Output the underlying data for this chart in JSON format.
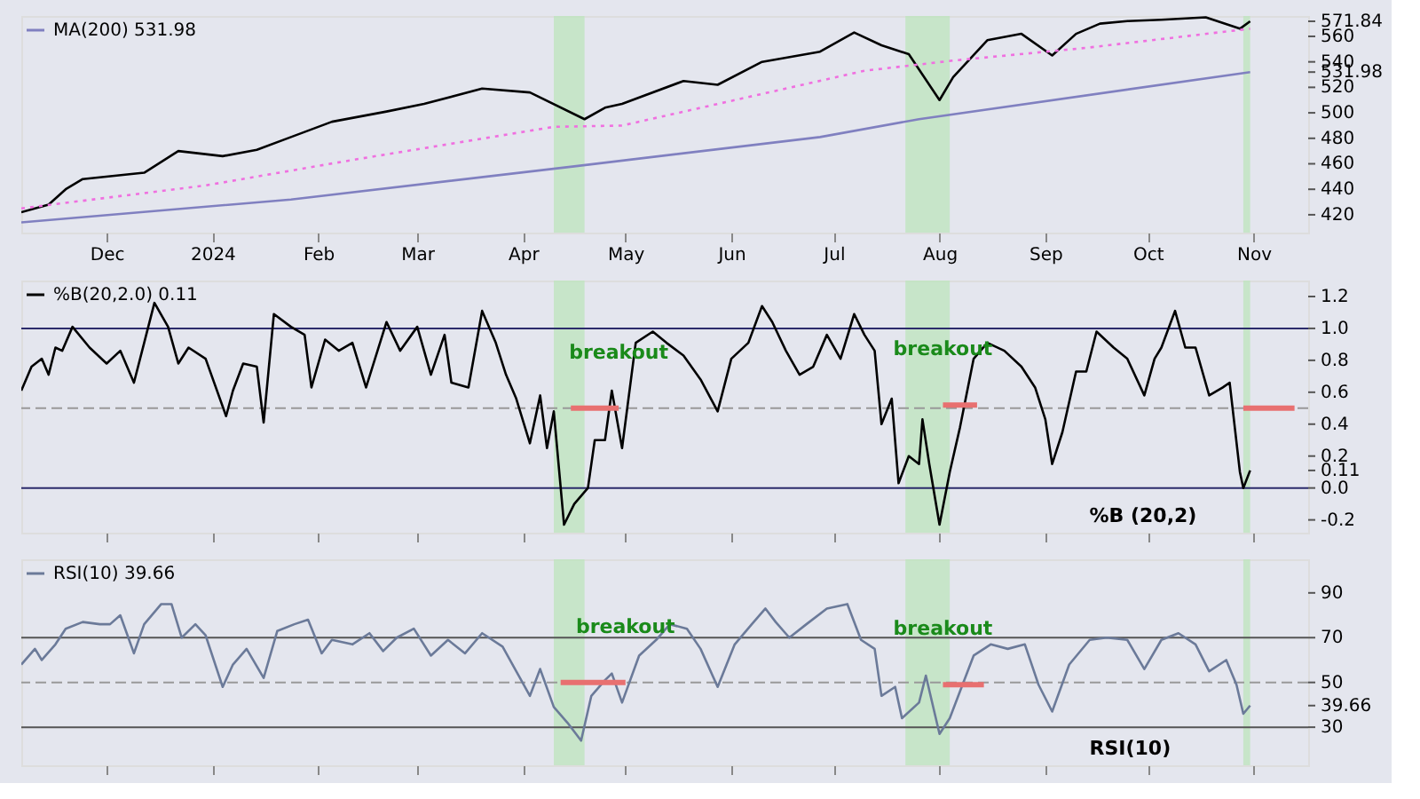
{
  "chart_data": [
    {
      "type": "line",
      "xlim": [
        "2023-11-06",
        "2024-11-17"
      ],
      "xticks": [
        {
          "value": "2023-12-01",
          "label": "Dec"
        },
        {
          "value": "2024-01-01",
          "label": "2024"
        },
        {
          "value": "2024-02-01",
          "label": "Feb"
        },
        {
          "value": "2024-03-01",
          "label": "Mar"
        },
        {
          "value": "2024-04-01",
          "label": "Apr"
        },
        {
          "value": "2024-05-01",
          "label": "May"
        },
        {
          "value": "2024-06-01",
          "label": "Jun"
        },
        {
          "value": "2024-07-01",
          "label": "Jul"
        },
        {
          "value": "2024-08-01",
          "label": "Aug"
        },
        {
          "value": "2024-09-01",
          "label": "Sep"
        },
        {
          "value": "2024-10-01",
          "label": "Oct"
        },
        {
          "value": "2024-11-01",
          "label": "Nov"
        }
      ],
      "ylim": [
        406,
        576
      ],
      "yticks": [
        420,
        440,
        460,
        480,
        500,
        520,
        531.98,
        540,
        560,
        571.84
      ],
      "grid": false,
      "legend": "top left",
      "series": [
        {
          "color": "#000000",
          "line_style": "solid",
          "x": [
            "2023-11-06",
            "2023-11-14",
            "2023-11-19",
            "2023-11-24",
            "2023-12-12",
            "2023-12-22",
            "2024-01-04",
            "2024-01-14",
            "2024-01-24",
            "2024-02-05",
            "2024-02-21",
            "2024-03-03",
            "2024-03-20",
            "2024-04-03",
            "2024-04-19",
            "2024-04-25",
            "2024-04-30",
            "2024-05-18",
            "2024-05-28",
            "2024-06-10",
            "2024-06-27",
            "2024-07-07",
            "2024-07-15",
            "2024-07-23",
            "2024-08-01",
            "2024-08-05",
            "2024-08-15",
            "2024-08-25",
            "2024-09-03",
            "2024-09-10",
            "2024-09-17",
            "2024-09-25",
            "2024-10-05",
            "2024-10-18",
            "2024-10-28",
            "2024-10-31"
          ],
          "values": [
            422,
            428,
            440,
            448,
            453,
            470,
            466,
            471,
            481,
            493,
            501,
            507,
            519,
            516,
            495,
            504,
            507,
            525,
            522,
            540,
            548,
            563,
            553,
            546,
            510,
            528,
            557,
            562,
            545,
            562,
            570,
            572,
            573,
            575,
            566,
            571.84
          ]
        },
        {
          "color": "#f070e0",
          "line_style": "dotted",
          "x": [
            "2023-11-06",
            "2023-12-30",
            "2024-02-11",
            "2024-04-10",
            "2024-04-30",
            "2024-07-10",
            "2024-08-05",
            "2024-09-13",
            "2024-10-31"
          ],
          "values": [
            425,
            443,
            463,
            489,
            490,
            533,
            541,
            551,
            566
          ]
        },
        {
          "name": "MA(200) 531.98",
          "color": "#8080c0",
          "line_style": "solid",
          "x": [
            "2023-11-06",
            "2024-01-24",
            "2024-04-16",
            "2024-06-27",
            "2024-07-26",
            "2024-10-31"
          ],
          "values": [
            414,
            432,
            458,
            481,
            495,
            531.98
          ]
        }
      ],
      "bands": [
        {
          "axis": "x",
          "from": "2024-04-10",
          "to": "2024-04-19",
          "color": "#bfe5bf"
        },
        {
          "axis": "x",
          "from": "2024-07-22",
          "to": "2024-08-04",
          "color": "#bfe5bf"
        },
        {
          "axis": "x",
          "from": "2024-10-29",
          "to": "2024-10-31",
          "color": "#bfe5bf"
        }
      ]
    },
    {
      "type": "line",
      "xlim": [
        "2023-11-06",
        "2024-11-17"
      ],
      "tick_labels": "y",
      "ylim": [
        -0.28,
        1.3
      ],
      "yticks": [
        -0.2,
        {
          "value": 0,
          "label": "0.0"
        },
        0.11,
        0.2,
        0.4,
        0.6,
        0.8,
        {
          "value": 1,
          "label": "1.0"
        },
        1.2
      ],
      "grid": false,
      "legend": "top left",
      "series": [
        {
          "name": "%B(20,2.0) 0.11",
          "color": "#000000",
          "line_style": "solid",
          "x": [
            "2023-11-06",
            "2023-11-09",
            "2023-11-12",
            "2023-11-14",
            "2023-11-16",
            "2023-11-18",
            "2023-11-21",
            "2023-11-26",
            "2023-12-01",
            "2023-12-05",
            "2023-12-09",
            "2023-12-12",
            "2023-12-15",
            "2023-12-19",
            "2023-12-22",
            "2023-12-25",
            "2023-12-30",
            "2024-01-05",
            "2024-01-07",
            "2024-01-10",
            "2024-01-14",
            "2024-01-16",
            "2024-01-19",
            "2024-01-24",
            "2024-01-28",
            "2024-01-30",
            "2024-02-03",
            "2024-02-07",
            "2024-02-11",
            "2024-02-15",
            "2024-02-21",
            "2024-02-25",
            "2024-03-01",
            "2024-03-05",
            "2024-03-09",
            "2024-03-11",
            "2024-03-16",
            "2024-03-20",
            "2024-03-24",
            "2024-03-27",
            "2024-03-30",
            "2024-04-03",
            "2024-04-06",
            "2024-04-08",
            "2024-04-10",
            "2024-04-13",
            "2024-04-16",
            "2024-04-20",
            "2024-04-22",
            "2024-04-25",
            "2024-04-27",
            "2024-04-30",
            "2024-05-04",
            "2024-05-09",
            "2024-05-13",
            "2024-05-18",
            "2024-05-23",
            "2024-05-28",
            "2024-06-01",
            "2024-06-06",
            "2024-06-10",
            "2024-06-13",
            "2024-06-17",
            "2024-06-21",
            "2024-06-25",
            "2024-06-29",
            "2024-07-03",
            "2024-07-07",
            "2024-07-10",
            "2024-07-13",
            "2024-07-15",
            "2024-07-18",
            "2024-07-20",
            "2024-07-23",
            "2024-07-26",
            "2024-07-27",
            "2024-07-29",
            "2024-08-01",
            "2024-08-04",
            "2024-08-07",
            "2024-08-11",
            "2024-08-15",
            "2024-08-20",
            "2024-08-25",
            "2024-08-29",
            "2024-09-01",
            "2024-09-03",
            "2024-09-06",
            "2024-09-10",
            "2024-09-13",
            "2024-09-16",
            "2024-09-21",
            "2024-09-25",
            "2024-09-30",
            "2024-10-03",
            "2024-10-05",
            "2024-10-09",
            "2024-10-12",
            "2024-10-15",
            "2024-10-19",
            "2024-10-23",
            "2024-10-25",
            "2024-10-28",
            "2024-10-29",
            "2024-10-31"
          ],
          "values": [
            0.61,
            0.76,
            0.81,
            0.71,
            0.88,
            0.86,
            1.01,
            0.88,
            0.78,
            0.86,
            0.66,
            0.91,
            1.16,
            1.01,
            0.78,
            0.88,
            0.81,
            0.45,
            0.61,
            0.78,
            0.76,
            0.41,
            1.09,
            1.01,
            0.96,
            0.63,
            0.93,
            0.86,
            0.91,
            0.63,
            1.04,
            0.86,
            1.01,
            0.71,
            0.96,
            0.66,
            0.63,
            1.11,
            0.91,
            0.71,
            0.56,
            0.28,
            0.58,
            0.25,
            0.48,
            -0.23,
            -0.1,
            0.0,
            0.3,
            0.3,
            0.61,
            0.25,
            0.91,
            0.98,
            0.91,
            0.83,
            0.68,
            0.48,
            0.81,
            0.91,
            1.14,
            1.04,
            0.86,
            0.71,
            0.76,
            0.96,
            0.81,
            1.09,
            0.96,
            0.86,
            0.4,
            0.56,
            0.03,
            0.2,
            0.15,
            0.43,
            0.15,
            -0.23,
            0.1,
            0.38,
            0.81,
            0.91,
            0.86,
            0.76,
            0.63,
            0.43,
            0.15,
            0.35,
            0.73,
            0.73,
            0.98,
            0.88,
            0.81,
            0.58,
            0.81,
            0.88,
            1.11,
            0.88,
            0.88,
            0.58,
            0.63,
            0.66,
            0.1,
            0.0,
            0.11
          ]
        },
        {
          "color": "#e87070",
          "line_style": "solid",
          "x": [
            "2024-04-15",
            "2024-04-29"
          ],
          "values": [
            0.5,
            0.5
          ]
        },
        {
          "color": "#e87070",
          "line_style": "solid",
          "x": [
            "2024-08-02",
            "2024-08-12"
          ],
          "values": [
            0.52,
            0.52
          ]
        },
        {
          "color": "#e87070",
          "line_style": "solid",
          "x": [
            "2024-10-29",
            "2024-11-13"
          ],
          "values": [
            0.5,
            0.5
          ]
        }
      ],
      "ref_lines": [
        {
          "axis": "y",
          "value": 1.0,
          "color": "#2b2b6b",
          "line_style": "solid"
        },
        {
          "axis": "y",
          "value": 0.0,
          "color": "#2b2b6b",
          "line_style": "solid"
        },
        {
          "axis": "y",
          "value": 0.5,
          "color": "#999999",
          "line_style": "dashed"
        }
      ],
      "bands": [
        {
          "axis": "x",
          "from": "2024-04-10",
          "to": "2024-04-19",
          "color": "#bfe5bf"
        },
        {
          "axis": "x",
          "from": "2024-07-22",
          "to": "2024-08-04",
          "color": "#bfe5bf"
        },
        {
          "axis": "x",
          "from": "2024-10-29",
          "to": "2024-10-31",
          "color": "#bfe5bf"
        }
      ],
      "annotations": [
        {
          "text": "breakout",
          "x": "2024-04-29",
          "y": 0.5
        },
        {
          "text": "breakout",
          "x": "2024-08-02",
          "y": 0.52
        },
        "%B (20,2)"
      ]
    },
    {
      "type": "line",
      "xlim": [
        "2023-11-06",
        "2024-11-17"
      ],
      "tick_labels": "y",
      "ylim": [
        13,
        105
      ],
      "yticks": [
        30,
        39.66,
        50,
        70,
        90
      ],
      "grid": false,
      "legend": "top left",
      "series": [
        {
          "name": "RSI(10) 39.66",
          "color": "#6b7a99",
          "line_style": "solid",
          "x": [
            "2023-11-06",
            "2023-11-10",
            "2023-11-12",
            "2023-11-16",
            "2023-11-19",
            "2023-11-24",
            "2023-11-29",
            "2023-12-02",
            "2023-12-05",
            "2023-12-09",
            "2023-12-12",
            "2023-12-17",
            "2023-12-20",
            "2023-12-23",
            "2023-12-27",
            "2023-12-30",
            "2024-01-04",
            "2024-01-07",
            "2024-01-11",
            "2024-01-16",
            "2024-01-20",
            "2024-01-25",
            "2024-01-29",
            "2024-02-02",
            "2024-02-05",
            "2024-02-11",
            "2024-02-16",
            "2024-02-20",
            "2024-02-24",
            "2024-02-29",
            "2024-03-05",
            "2024-03-10",
            "2024-03-15",
            "2024-03-20",
            "2024-03-26",
            "2024-03-30",
            "2024-04-03",
            "2024-04-06",
            "2024-04-10",
            "2024-04-14",
            "2024-04-18",
            "2024-04-21",
            "2024-04-25",
            "2024-04-27",
            "2024-04-30",
            "2024-05-05",
            "2024-05-10",
            "2024-05-14",
            "2024-05-19",
            "2024-05-23",
            "2024-05-28",
            "2024-06-02",
            "2024-06-07",
            "2024-06-11",
            "2024-06-14",
            "2024-06-18",
            "2024-06-23",
            "2024-06-29",
            "2024-07-05",
            "2024-07-09",
            "2024-07-13",
            "2024-07-15",
            "2024-07-19",
            "2024-07-21",
            "2024-07-26",
            "2024-07-28",
            "2024-08-01",
            "2024-08-04",
            "2024-08-07",
            "2024-08-11",
            "2024-08-16",
            "2024-08-21",
            "2024-08-26",
            "2024-08-30",
            "2024-09-03",
            "2024-09-08",
            "2024-09-14",
            "2024-09-19",
            "2024-09-25",
            "2024-09-30",
            "2024-10-05",
            "2024-10-10",
            "2024-10-15",
            "2024-10-19",
            "2024-10-24",
            "2024-10-27",
            "2024-10-29",
            "2024-10-31"
          ],
          "values": [
            58,
            65,
            60,
            67,
            74,
            77,
            76,
            76,
            80,
            63,
            76,
            85,
            85,
            70,
            76,
            71,
            48,
            58,
            65,
            52,
            73,
            76,
            78,
            63,
            69,
            67,
            72,
            64,
            70,
            74,
            62,
            69,
            63,
            72,
            66,
            55,
            44,
            56,
            39,
            32,
            24,
            44,
            51,
            54,
            41,
            62,
            69,
            76,
            74,
            65,
            48,
            67,
            76,
            83,
            77,
            70,
            76,
            83,
            85,
            69,
            65,
            44,
            48,
            34,
            41,
            53,
            27,
            34,
            46,
            62,
            67,
            65,
            67,
            49,
            37,
            58,
            69,
            70,
            69,
            56,
            69,
            72,
            67,
            55,
            60,
            49,
            36,
            39.66
          ]
        },
        {
          "color": "#e87070",
          "line_style": "solid",
          "x": [
            "2024-04-12",
            "2024-05-01"
          ],
          "values": [
            50,
            50
          ]
        },
        {
          "color": "#e87070",
          "line_style": "solid",
          "x": [
            "2024-08-02",
            "2024-08-14"
          ],
          "values": [
            49,
            49
          ]
        }
      ],
      "ref_lines": [
        {
          "axis": "y",
          "value": 70,
          "color": "#555555",
          "line_style": "solid"
        },
        {
          "axis": "y",
          "value": 30,
          "color": "#555555",
          "line_style": "solid"
        },
        {
          "axis": "y",
          "value": 50,
          "color": "#999999",
          "line_style": "dashed"
        }
      ],
      "bands": [
        {
          "axis": "x",
          "from": "2024-04-10",
          "to": "2024-04-19",
          "color": "#bfe5bf"
        },
        {
          "axis": "x",
          "from": "2024-07-22",
          "to": "2024-08-04",
          "color": "#bfe5bf"
        },
        {
          "axis": "x",
          "from": "2024-10-29",
          "to": "2024-10-31",
          "color": "#bfe5bf"
        }
      ],
      "annotations": [
        {
          "text": "breakout",
          "x": "2024-05-01",
          "y": 50
        },
        {
          "text": "breakout",
          "x": "2024-08-02",
          "y": 49
        },
        "RSI(10)"
      ]
    }
  ]
}
